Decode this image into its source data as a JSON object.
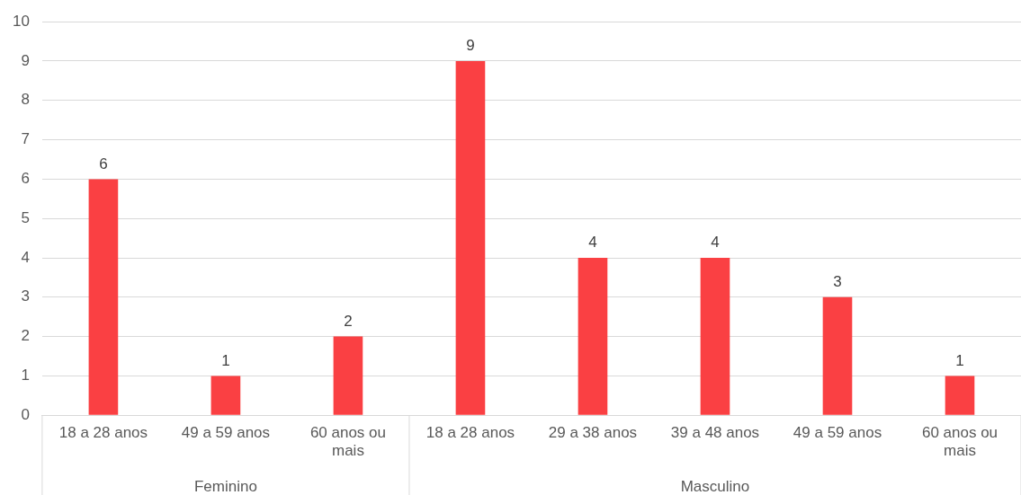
{
  "chart_data": {
    "type": "bar",
    "categories": [
      "18 a 28 anos",
      "49 a 59 anos",
      "60 anos ou mais",
      "18 a 28 anos",
      "29 a 38 anos",
      "39 a 48 anos",
      "49 a 59 anos",
      "60 anos ou mais"
    ],
    "values": [
      6,
      1,
      2,
      9,
      4,
      4,
      3,
      1
    ],
    "color": "#fa4043",
    "ylim": [
      0,
      10
    ],
    "yticks": [
      0,
      1,
      2,
      3,
      4,
      5,
      6,
      7,
      8,
      9,
      10
    ],
    "grid": "y",
    "legend": false,
    "data_labels": true,
    "annotations": [
      "Feminino",
      "Masculino"
    ]
  }
}
